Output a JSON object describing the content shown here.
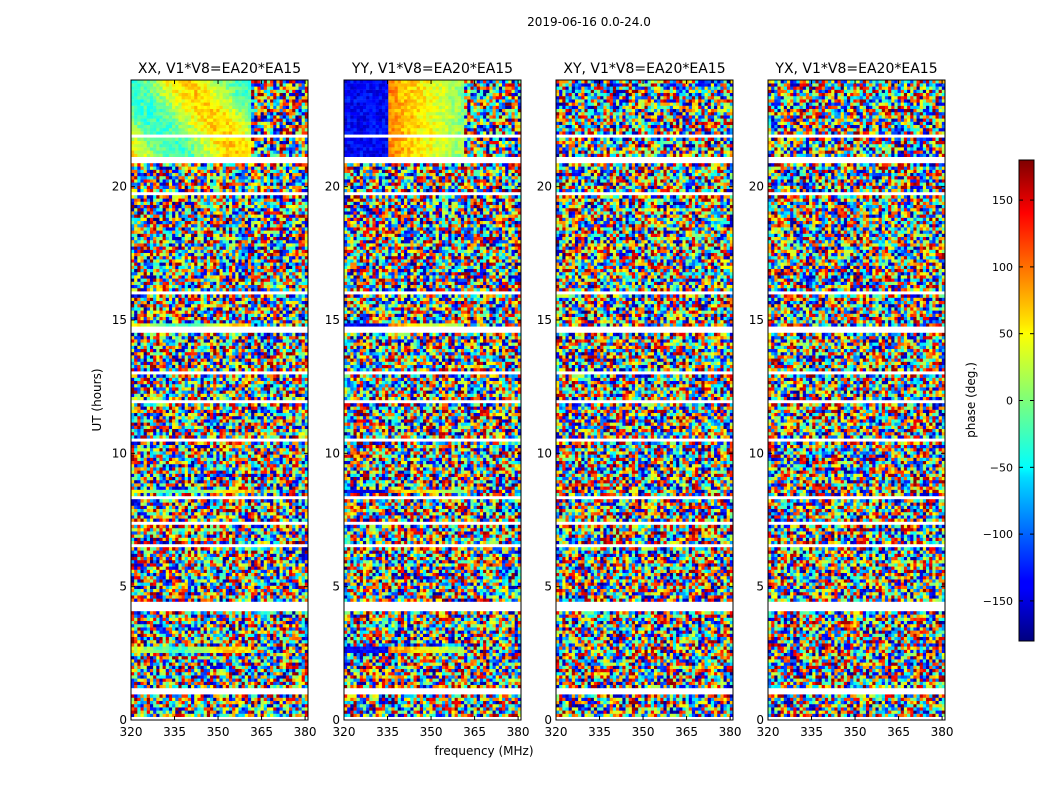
{
  "figure": {
    "suptitle": "2019-06-16 0.0-24.0",
    "xlabel": "frequency (MHz)",
    "ylabel": "UT (hours)"
  },
  "chart_data": {
    "type": "heatmap",
    "title": "2019-06-16 0.0-24.0",
    "xlabel": "frequency (MHz)",
    "ylabel": "UT (hours)",
    "xlim": [
      320,
      381
    ],
    "ylim": [
      0,
      24
    ],
    "xticks": [
      320,
      335,
      350,
      365,
      380
    ],
    "yticks": [
      0,
      5,
      10,
      15,
      20
    ],
    "colormap": "jet",
    "panels": [
      {
        "polarization": "XX",
        "title": "XX, V1*V8=EA20*EA15"
      },
      {
        "polarization": "YY",
        "title": "YY, V1*V8=EA20*EA15"
      },
      {
        "polarization": "XY",
        "title": "XY, V1*V8=EA20*EA15"
      },
      {
        "polarization": "YX",
        "title": "YX, V1*V8=EA20*EA15"
      }
    ],
    "colorbar": {
      "label": "phase (deg.)",
      "range": [
        -180,
        180
      ],
      "ticks": [
        -150,
        -100,
        -50,
        0,
        50,
        100,
        150
      ],
      "tick_labels": [
        "−150",
        "−100",
        "−50",
        "0",
        "50",
        "100",
        "150"
      ]
    }
  }
}
